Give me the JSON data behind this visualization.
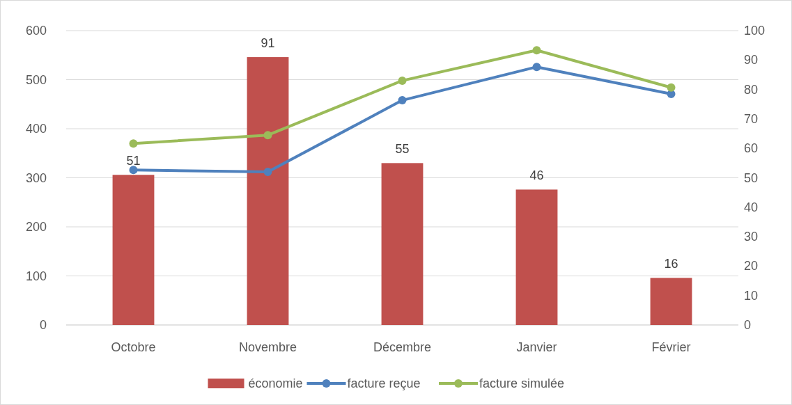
{
  "chart_data": {
    "type": "line",
    "categories": [
      "Octobre",
      "Novembre",
      "Décembre",
      "Janvier",
      "Février"
    ],
    "series": [
      {
        "name": "économie",
        "type": "bar",
        "axis": "y2",
        "color": "#c0504d",
        "values": [
          51,
          91,
          55,
          46,
          16
        ],
        "value_labels": [
          "51",
          "91",
          "55",
          "46",
          "16"
        ]
      },
      {
        "name": "facture reçue",
        "color": "#4f81bd",
        "values": [
          316,
          312,
          458,
          526,
          471
        ]
      },
      {
        "name": "facture simulée",
        "color": "#9bbb59",
        "values": [
          370,
          387,
          498,
          560,
          484
        ]
      }
    ],
    "ylim": [
      0,
      600
    ],
    "yticks": [
      0,
      100,
      200,
      300,
      400,
      500,
      600
    ],
    "y2lim": [
      0,
      100
    ],
    "y2ticks": [
      0,
      10,
      20,
      30,
      40,
      50,
      60,
      70,
      80,
      90,
      100
    ],
    "grid": "y",
    "legend": "bottom",
    "marker": "circle",
    "line_style": "solid"
  }
}
